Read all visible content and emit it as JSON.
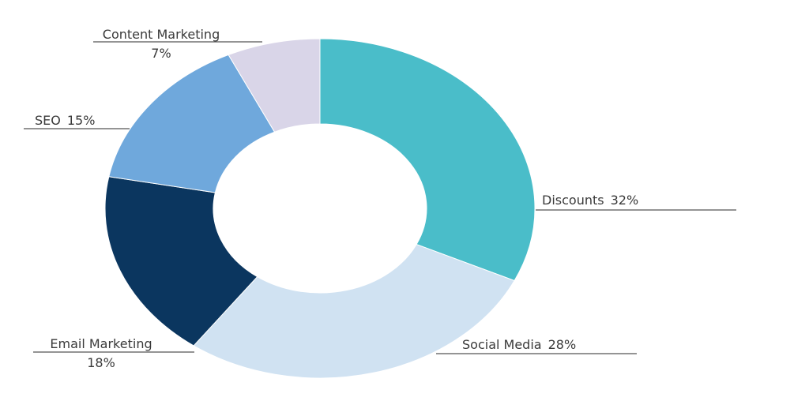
{
  "chart_data": {
    "type": "pie",
    "variant": "donut",
    "categories": [
      "Discounts",
      "Social Media",
      "Email Marketing",
      "SEO",
      "Content Marketing"
    ],
    "values": [
      32,
      28,
      18,
      15,
      7
    ],
    "unit": "%",
    "labels": [
      {
        "name": "Discounts",
        "value_text": "32%"
      },
      {
        "name": "Social Media",
        "value_text": "28%"
      },
      {
        "name": "Email Marketing",
        "value_text": "18%"
      },
      {
        "name": "SEO",
        "value_text": "15%"
      },
      {
        "name": "Content Marketing",
        "value_text": "7%"
      }
    ],
    "colors": [
      "#4ABDC9",
      "#D0E2F2",
      "#0B365F",
      "#6FA8DC",
      "#D9D5E8"
    ],
    "title": "",
    "legend": "none",
    "label_line_color": "#555555"
  }
}
